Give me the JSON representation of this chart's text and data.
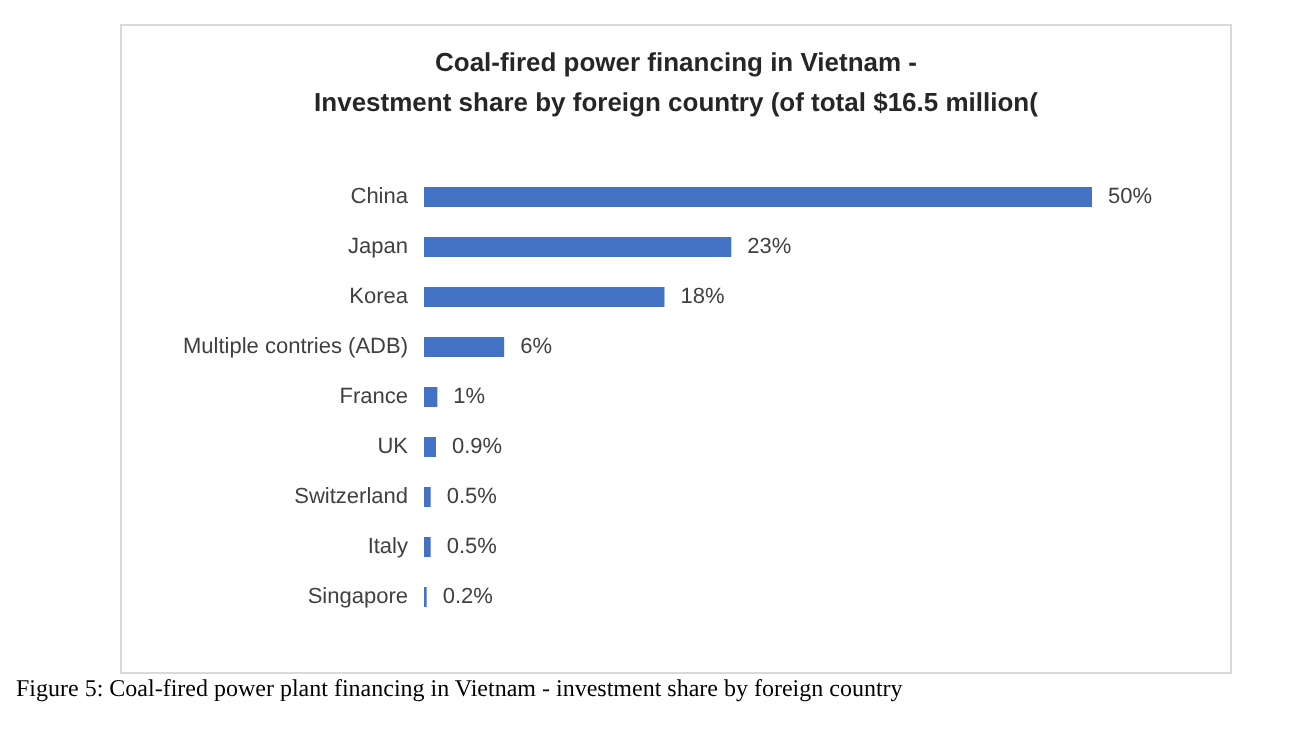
{
  "chart_data": {
    "type": "bar",
    "orientation": "horizontal",
    "title": "Coal-fired power financing in Vietnam -\nInvestment share by foreign country (of total $16.5 million(",
    "categories": [
      "China",
      "Japan",
      "Korea",
      "Multiple contries (ADB)",
      "France",
      "UK",
      "Switzerland",
      "Italy",
      "Singapore"
    ],
    "values": [
      50,
      23,
      18,
      6,
      1,
      0.9,
      0.5,
      0.5,
      0.2
    ],
    "value_labels": [
      "50%",
      "23%",
      "18%",
      "6%",
      "1%",
      "0.9%",
      "0.5%",
      "0.5%",
      "0.2%"
    ],
    "color": "#4472c4",
    "annotations": [
      "Figure 5: Coal-fired power plant financing in Vietnam - investment share by foreign country"
    ]
  }
}
